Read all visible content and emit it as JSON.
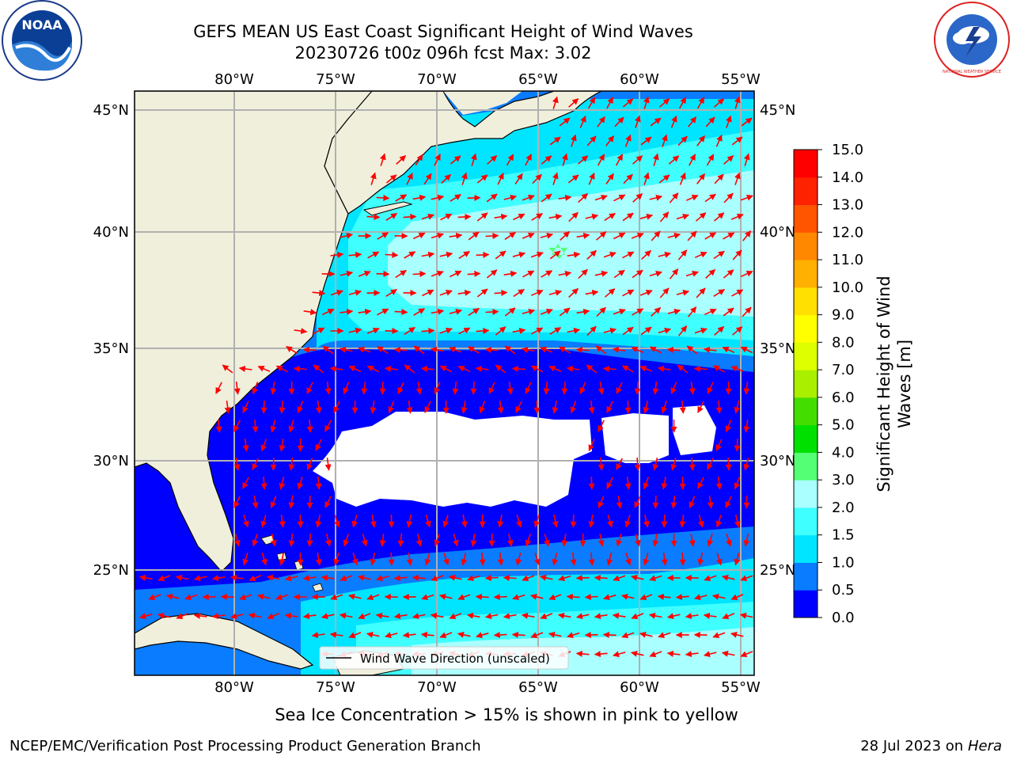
{
  "title_line1": "GEFS MEAN US East Coast Significant Height of Wind Waves",
  "title_line2": "20230726 t00z 096h fcst   Max: 3.02",
  "lon_labels": [
    "80°W",
    "75°W",
    "70°W",
    "65°W",
    "60°W",
    "55°W"
  ],
  "lat_labels": [
    "45°N",
    "40°N",
    "35°N",
    "30°N",
    "25°N"
  ],
  "legend_label": "Wind Wave Direction (unscaled)",
  "colorbar": {
    "label": "Significant Height of Wind Waves [m]",
    "ticks": [
      "0.0",
      "0.5",
      "1.0",
      "1.5",
      "2.0",
      "3.0",
      "4.0",
      "5.0",
      "6.0",
      "7.0",
      "8.0",
      "9.0",
      "10.0",
      "11.0",
      "12.0",
      "13.0",
      "14.0",
      "15.0"
    ],
    "colors": [
      "#0000ff",
      "#0a7cff",
      "#00e5ff",
      "#40ffff",
      "#aaffff",
      "#55ff75",
      "#00e000",
      "#44dd00",
      "#aaee00",
      "#ddff00",
      "#ffff00",
      "#ffe000",
      "#ffb000",
      "#ff8800",
      "#ff5500",
      "#ff2200",
      "#ff0000"
    ]
  },
  "ice_note": "Sea Ice Concentration > 15% is shown in pink to yellow",
  "credit": "NCEP/EMC/Verification Post Processing Product Generation Branch",
  "date": "28 Jul 2023 on",
  "machine": "Hera",
  "logos": {
    "noaa_text": "NOAA",
    "nws_text": "NATIONAL WEATHER SERVICE"
  }
}
